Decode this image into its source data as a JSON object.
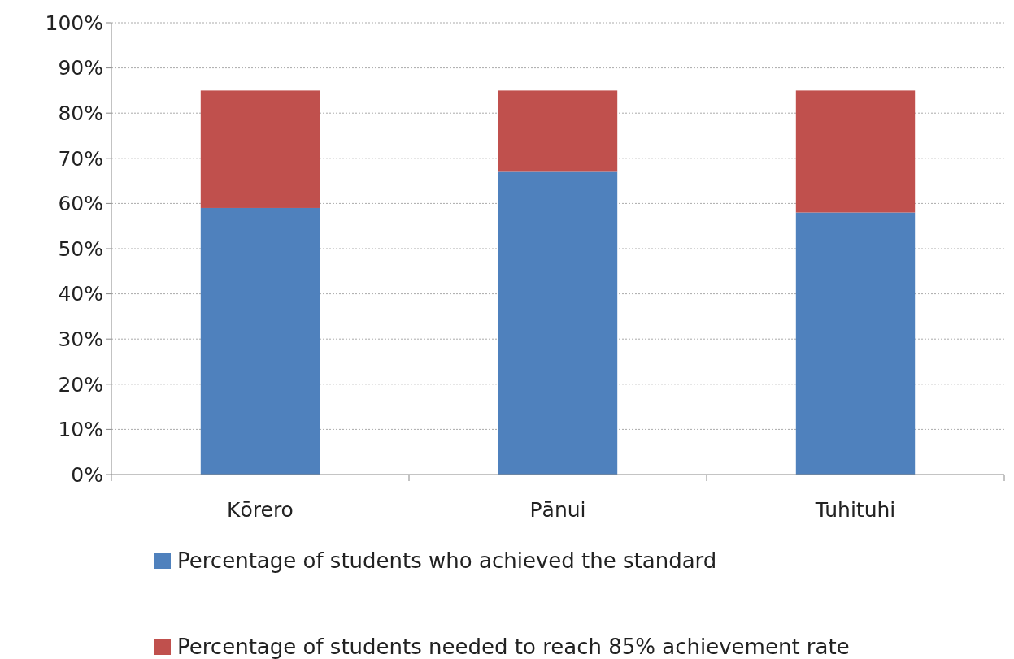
{
  "chart_data": {
    "type": "bar",
    "stacked": true,
    "categories": [
      "Kōrero",
      "Pānui",
      "Tuhituhi"
    ],
    "series": [
      {
        "name": "Percentage of students who achieved the standard",
        "color": "#4f81bd",
        "values": [
          59,
          67,
          58
        ]
      },
      {
        "name": "Percentage of students needed to reach 85% achievement rate",
        "color": "#c0504d",
        "values": [
          26,
          18,
          27
        ]
      }
    ],
    "ylim": [
      0,
      100
    ],
    "yticks": [
      {
        "value": 0,
        "label": "0%"
      },
      {
        "value": 10,
        "label": "10%"
      },
      {
        "value": 20,
        "label": "20%"
      },
      {
        "value": 30,
        "label": "30%"
      },
      {
        "value": 40,
        "label": "40%"
      },
      {
        "value": 50,
        "label": "50%"
      },
      {
        "value": 60,
        "label": "60%"
      },
      {
        "value": 70,
        "label": "70%"
      },
      {
        "value": 80,
        "label": "80%"
      },
      {
        "value": 90,
        "label": "90%"
      },
      {
        "value": 100,
        "label": "100%"
      }
    ],
    "grid": "y",
    "legend": "bottom"
  }
}
